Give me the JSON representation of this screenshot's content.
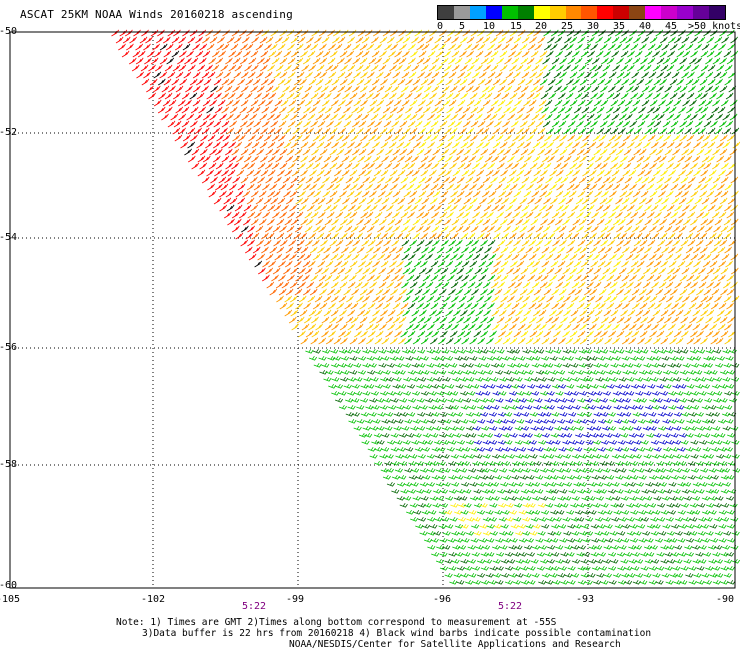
{
  "title": "ASCAT 25KM NOAA Winds 20160218 ascending",
  "legend": {
    "labels": [
      "0",
      "5",
      "10",
      "15",
      "20",
      "25",
      "30",
      "35",
      "40",
      "45",
      ">50 knots"
    ],
    "colors": [
      "#3f3f3f",
      "#9a9a9a",
      "#00a0ff",
      "#0000ff",
      "#00c000",
      "#008000",
      "#ffff00",
      "#ffcc00",
      "#ff8800",
      "#ff5500",
      "#ff0000",
      "#cc0000",
      "#8b4513",
      "#ff00ff",
      "#cc00cc",
      "#9900cc",
      "#660099",
      "#330066"
    ]
  },
  "lat_ticks": [
    "-50",
    "-52",
    "-54",
    "-56",
    "-58",
    "-60"
  ],
  "lon_ticks": [
    "-105",
    "-102",
    "-99",
    "-96",
    "-93",
    "-90"
  ],
  "times": [
    "5:22",
    "5:22"
  ],
  "notes": [
    "Note: 1) Times are GMT 2)Times along bottom correspond to measurement at -55S",
    "3)Data buffer is 22 hrs from 20160218 4) Black wind barbs indicate possible contamination",
    "NOAA/NESDIS/Center for Satellite Applications and Research"
  ],
  "wind_colors": {
    "red": "#ff0000",
    "orange_red": "#ff6600",
    "orange": "#ff9900",
    "gold": "#ffcc00",
    "yellow": "#ffee00",
    "green": "#00c000",
    "dark_green": "#006400",
    "blue": "#0000cc",
    "black": "#000000"
  }
}
